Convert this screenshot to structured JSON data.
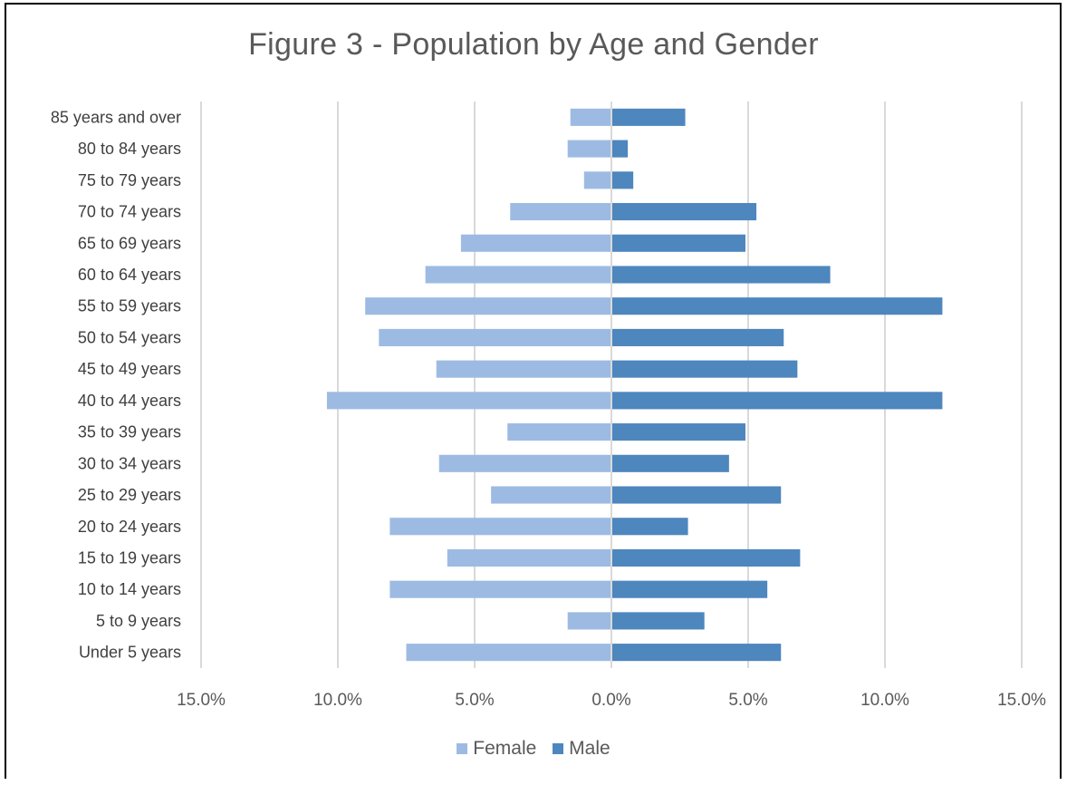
{
  "chart_data": {
    "type": "bar",
    "orientation": "horizontal",
    "title": "Figure 3 - Population by Age and Gender",
    "categories": [
      "85 years and over",
      "80 to 84 years",
      "75 to 79 years",
      "70 to 74 years",
      "65 to 69 years",
      "60 to 64 years",
      "55 to 59 years",
      "50 to 54 years",
      "45 to 49 years",
      "40 to 44 years",
      "35 to 39 years",
      "30 to 34 years",
      "25 to 29 years",
      "20 to 24 years",
      "15 to 19 years",
      "10 to 14 years",
      "5 to 9 years",
      "Under 5 years"
    ],
    "series": [
      {
        "name": "Female",
        "color": "#9dbbe2",
        "values": [
          1.5,
          1.6,
          1.0,
          3.7,
          5.5,
          6.8,
          9.0,
          8.5,
          6.4,
          10.4,
          3.8,
          6.3,
          4.4,
          8.1,
          6.0,
          8.1,
          1.6,
          7.5
        ]
      },
      {
        "name": "Male",
        "color": "#4e86be",
        "values": [
          2.7,
          0.6,
          0.8,
          5.3,
          4.9,
          8.0,
          12.1,
          6.3,
          6.8,
          12.1,
          4.9,
          4.3,
          6.2,
          2.8,
          6.9,
          5.7,
          3.4,
          6.2
        ]
      }
    ],
    "xlim": [
      -15,
      15
    ],
    "x_ticks": [
      "15.0%",
      "10.0%",
      "5.0%",
      "0.0%",
      "5.0%",
      "10.0%",
      "15.0%"
    ],
    "xlabel": "",
    "ylabel": "",
    "grid": "vertical",
    "legend_position": "bottom"
  }
}
